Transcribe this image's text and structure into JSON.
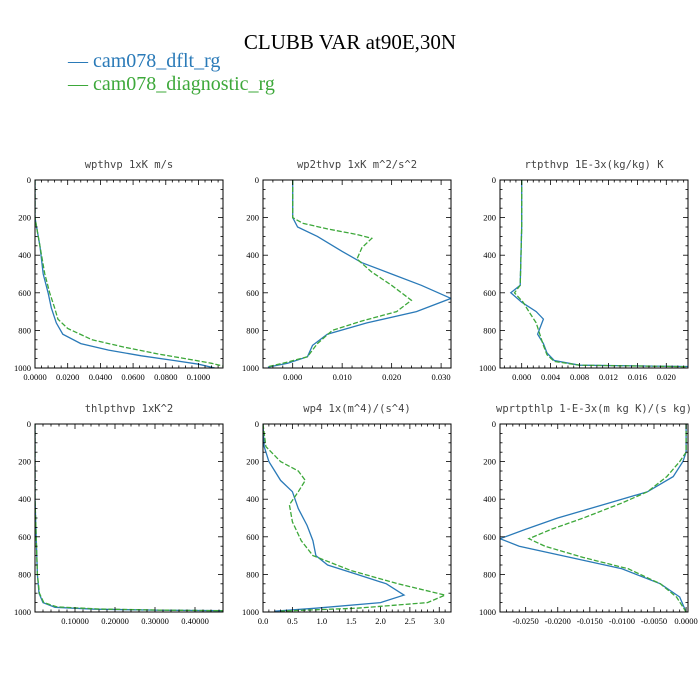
{
  "title": "CLUBB VAR at90E,30N",
  "legend": [
    {
      "label": "cam078_dflt_rg",
      "color": "#2a7ab8",
      "dash": false
    },
    {
      "label": "cam078_diagnostic_rg",
      "color": "#3da83a",
      "dash": true
    }
  ],
  "chart_data": [
    {
      "type": "line",
      "title": "wpthvp   1xK m/s",
      "xlim": [
        0,
        0.115
      ],
      "ylim": [
        1000,
        0
      ],
      "xticks": [
        0,
        0.02,
        0.04,
        0.06,
        0.08,
        0.1
      ],
      "xtick_labels": [
        "0.0000",
        "0.0200",
        "0.0400",
        "0.0600",
        "0.0800",
        "0.1000"
      ],
      "yticks": [
        0,
        200,
        400,
        600,
        800,
        1000
      ],
      "ytick_labels": [
        "0",
        "200",
        "400",
        "600",
        "800",
        "1000"
      ],
      "series": [
        {
          "name": "cam078_dflt_rg",
          "points": [
            [
              0.0,
              0
            ],
            [
              0.0,
              200
            ],
            [
              0.001,
              250
            ],
            [
              0.003,
              350
            ],
            [
              0.005,
              500
            ],
            [
              0.008,
              600
            ],
            [
              0.01,
              680
            ],
            [
              0.013,
              760
            ],
            [
              0.017,
              820
            ],
            [
              0.028,
              870
            ],
            [
              0.045,
              905
            ],
            [
              0.065,
              935
            ],
            [
              0.085,
              960
            ],
            [
              0.1,
              980
            ],
            [
              0.11,
              1000
            ]
          ]
        },
        {
          "name": "cam078_diagnostic_rg",
          "points": [
            [
              0.0,
              0
            ],
            [
              0.0,
              200
            ],
            [
              0.001,
              250
            ],
            [
              0.003,
              350
            ],
            [
              0.006,
              500
            ],
            [
              0.009,
              600
            ],
            [
              0.012,
              680
            ],
            [
              0.014,
              740
            ],
            [
              0.02,
              790
            ],
            [
              0.035,
              850
            ],
            [
              0.055,
              890
            ],
            [
              0.075,
              925
            ],
            [
              0.095,
              955
            ],
            [
              0.108,
              975
            ],
            [
              0.115,
              990
            ]
          ]
        }
      ]
    },
    {
      "type": "line",
      "title": "wp2thvp   1xK m^2/s^2",
      "xlim": [
        -0.006,
        0.032
      ],
      "ylim": [
        1000,
        0
      ],
      "xticks": [
        0,
        0.01,
        0.02,
        0.03
      ],
      "xtick_labels": [
        "0.000",
        "0.010",
        "0.020",
        "0.030"
      ],
      "yticks": [
        0,
        200,
        400,
        600,
        800,
        1000
      ],
      "ytick_labels": [
        "0",
        "200",
        "400",
        "600",
        "800",
        "1000"
      ],
      "series": [
        {
          "name": "cam078_dflt_rg",
          "points": [
            [
              0.0,
              0
            ],
            [
              0.0,
              150
            ],
            [
              0.0,
              170
            ],
            [
              0.0,
              200
            ],
            [
              0.001,
              250
            ],
            [
              0.005,
              300
            ],
            [
              0.01,
              380
            ],
            [
              0.014,
              440
            ],
            [
              0.02,
              500
            ],
            [
              0.026,
              560
            ],
            [
              0.032,
              630
            ],
            [
              0.025,
              700
            ],
            [
              0.015,
              760
            ],
            [
              0.007,
              820
            ],
            [
              0.004,
              880
            ],
            [
              0.003,
              940
            ],
            [
              -0.001,
              975
            ],
            [
              -0.005,
              995
            ]
          ]
        },
        {
          "name": "cam078_diagnostic_rg",
          "points": [
            [
              0.0,
              0
            ],
            [
              0.0,
              200
            ],
            [
              0.002,
              230
            ],
            [
              0.007,
              260
            ],
            [
              0.013,
              290
            ],
            [
              0.016,
              310
            ],
            [
              0.014,
              360
            ],
            [
              0.013,
              420
            ],
            [
              0.016,
              490
            ],
            [
              0.02,
              560
            ],
            [
              0.024,
              640
            ],
            [
              0.021,
              700
            ],
            [
              0.014,
              750
            ],
            [
              0.008,
              800
            ],
            [
              0.005,
              870
            ],
            [
              0.003,
              940
            ],
            [
              -0.002,
              975
            ],
            [
              -0.005,
              993
            ]
          ]
        }
      ]
    },
    {
      "type": "line",
      "title": "rtpthvp   1E-3x(kg/kg) K",
      "xlim": [
        -0.003,
        0.023
      ],
      "ylim": [
        1000,
        0
      ],
      "xticks": [
        0,
        0.004,
        0.008,
        0.012,
        0.016,
        0.02
      ],
      "xtick_labels": [
        "0.000",
        "0.004",
        "0.008",
        "0.012",
        "0.016",
        "0.020"
      ],
      "yticks": [
        0,
        200,
        400,
        600,
        800,
        1000
      ],
      "ytick_labels": [
        "0",
        "200",
        "400",
        "600",
        "800",
        "1000"
      ],
      "series": [
        {
          "name": "cam078_dflt_rg",
          "points": [
            [
              0.0,
              0
            ],
            [
              0.0,
              250
            ],
            [
              -0.0002,
              560
            ],
            [
              -0.0015,
              600
            ],
            [
              0.0,
              650
            ],
            [
              0.002,
              700
            ],
            [
              0.003,
              740
            ],
            [
              0.0025,
              790
            ],
            [
              0.0022,
              820
            ],
            [
              0.003,
              870
            ],
            [
              0.0035,
              920
            ],
            [
              0.0045,
              960
            ],
            [
              0.008,
              985
            ],
            [
              0.023,
              992
            ]
          ]
        },
        {
          "name": "cam078_diagnostic_rg",
          "points": [
            [
              0.0,
              0
            ],
            [
              0.0,
              250
            ],
            [
              -0.0002,
              560
            ],
            [
              -0.001,
              600
            ],
            [
              0.0002,
              650
            ],
            [
              0.001,
              700
            ],
            [
              0.002,
              760
            ],
            [
              0.0025,
              820
            ],
            [
              0.003,
              880
            ],
            [
              0.0035,
              930
            ],
            [
              0.0045,
              965
            ],
            [
              0.008,
              985
            ],
            [
              0.023,
              993
            ]
          ]
        }
      ]
    },
    {
      "type": "line",
      "title": "thlpthvp   1xK^2",
      "xlim": [
        0,
        0.47
      ],
      "ylim": [
        1000,
        0
      ],
      "xticks": [
        0.1,
        0.2,
        0.3,
        0.4
      ],
      "xtick_labels": [
        "0.10000",
        "0.20000",
        "0.30000",
        "0.40000"
      ],
      "yticks": [
        0,
        200,
        400,
        600,
        800,
        1000
      ],
      "ytick_labels": [
        "0",
        "200",
        "400",
        "600",
        "800",
        "1000"
      ],
      "series": [
        {
          "name": "cam078_dflt_rg",
          "points": [
            [
              0.0,
              0
            ],
            [
              0.0,
              400
            ],
            [
              0.003,
              600
            ],
            [
              0.006,
              800
            ],
            [
              0.01,
              900
            ],
            [
              0.02,
              950
            ],
            [
              0.05,
              975
            ],
            [
              0.15,
              985
            ],
            [
              0.3,
              990
            ],
            [
              0.47,
              993
            ]
          ]
        },
        {
          "name": "cam078_diagnostic_rg",
          "points": [
            [
              0.0,
              0
            ],
            [
              0.0,
              400
            ],
            [
              0.003,
              600
            ],
            [
              0.006,
              800
            ],
            [
              0.011,
              900
            ],
            [
              0.022,
              950
            ],
            [
              0.055,
              973
            ],
            [
              0.16,
              984
            ],
            [
              0.31,
              990
            ],
            [
              0.47,
              993
            ]
          ]
        }
      ]
    },
    {
      "type": "line",
      "title": "wp4   1x(m^4)/(s^4)",
      "xlim": [
        0,
        3.2
      ],
      "ylim": [
        1000,
        0
      ],
      "xticks": [
        0,
        0.5,
        1.0,
        1.5,
        2.0,
        2.5,
        3.0
      ],
      "xtick_labels": [
        "0.0",
        "0.5",
        "1.0",
        "1.5",
        "2.0",
        "2.5",
        "3.0"
      ],
      "yticks": [
        0,
        200,
        400,
        600,
        800,
        1000
      ],
      "ytick_labels": [
        "0",
        "200",
        "400",
        "600",
        "800",
        "1000"
      ],
      "series": [
        {
          "name": "cam078_dflt_rg",
          "points": [
            [
              0.0,
              0
            ],
            [
              0.02,
              120
            ],
            [
              0.1,
              200
            ],
            [
              0.3,
              300
            ],
            [
              0.5,
              360
            ],
            [
              0.6,
              450
            ],
            [
              0.75,
              540
            ],
            [
              0.85,
              620
            ],
            [
              0.9,
              700
            ],
            [
              1.1,
              750
            ],
            [
              1.6,
              800
            ],
            [
              2.1,
              850
            ],
            [
              2.4,
              910
            ],
            [
              2.0,
              950
            ],
            [
              0.9,
              980
            ],
            [
              0.2,
              995
            ]
          ]
        },
        {
          "name": "cam078_diagnostic_rg",
          "points": [
            [
              0.0,
              0
            ],
            [
              0.05,
              120
            ],
            [
              0.3,
              200
            ],
            [
              0.6,
              250
            ],
            [
              0.72,
              300
            ],
            [
              0.6,
              360
            ],
            [
              0.45,
              430
            ],
            [
              0.5,
              520
            ],
            [
              0.65,
              620
            ],
            [
              0.85,
              700
            ],
            [
              1.5,
              780
            ],
            [
              2.3,
              850
            ],
            [
              3.1,
              910
            ],
            [
              2.8,
              950
            ],
            [
              1.6,
              980
            ],
            [
              0.3,
              995
            ]
          ]
        }
      ]
    },
    {
      "type": "line",
      "title": "wprtpthlp   1-E-3x(m kg K)/(s kg)",
      "xlim": [
        -0.029,
        0.0003
      ],
      "ylim": [
        1000,
        0
      ],
      "xticks": [
        -0.025,
        -0.02,
        -0.015,
        -0.01,
        -0.005,
        0.0
      ],
      "xtick_labels": [
        "-0.0250",
        "-0.0200",
        "-0.0150",
        "-0.0100",
        "-0.0050",
        "0.0000"
      ],
      "yticks": [
        0,
        200,
        400,
        600,
        800,
        1000
      ],
      "ytick_labels": [
        "0",
        "200",
        "400",
        "600",
        "800",
        "1000"
      ],
      "series": [
        {
          "name": "cam078_dflt_rg",
          "points": [
            [
              0.0,
              0
            ],
            [
              0.0,
              150
            ],
            [
              -0.0005,
              200
            ],
            [
              -0.002,
              280
            ],
            [
              -0.006,
              360
            ],
            [
              -0.012,
              420
            ],
            [
              -0.02,
              500
            ],
            [
              -0.025,
              560
            ],
            [
              -0.029,
              610
            ],
            [
              -0.026,
              650
            ],
            [
              -0.018,
              710
            ],
            [
              -0.01,
              770
            ],
            [
              -0.004,
              850
            ],
            [
              -0.001,
              920
            ],
            [
              0.0,
              1000
            ]
          ]
        },
        {
          "name": "cam078_diagnostic_rg",
          "points": [
            [
              0.0,
              0
            ],
            [
              0.0,
              150
            ],
            [
              -0.001,
              200
            ],
            [
              -0.003,
              280
            ],
            [
              -0.006,
              360
            ],
            [
              -0.01,
              420
            ],
            [
              -0.016,
              500
            ],
            [
              -0.021,
              560
            ],
            [
              -0.0245,
              610
            ],
            [
              -0.022,
              650
            ],
            [
              -0.016,
              710
            ],
            [
              -0.009,
              770
            ],
            [
              -0.004,
              850
            ],
            [
              -0.0015,
              920
            ],
            [
              0.0,
              1000
            ]
          ]
        }
      ]
    }
  ]
}
